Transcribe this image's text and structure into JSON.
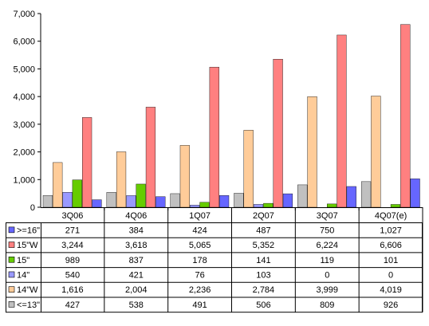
{
  "chart_data": {
    "type": "bar",
    "title": "",
    "xlabel": "",
    "ylabel": "",
    "ylim": [
      0,
      7000
    ],
    "yticks": [
      "0",
      "1,000",
      "2,000",
      "3,000",
      "4,000",
      "5,000",
      "6,000",
      "7,000"
    ],
    "grid": false,
    "legend": "data-table",
    "categories": [
      "3Q06",
      "4Q06",
      "1Q07",
      "2Q07",
      "3Q07",
      "4Q07(e)"
    ],
    "series": [
      {
        "name": "<=13\"",
        "color": "#C0C0C0",
        "values": [
          427,
          538,
          491,
          506,
          809,
          926
        ],
        "labels": [
          "427",
          "538",
          "491",
          "506",
          "809",
          "926"
        ]
      },
      {
        "name": "14\"W",
        "color": "#FFCC99",
        "values": [
          1616,
          2004,
          2236,
          2784,
          3999,
          4019
        ],
        "labels": [
          "1,616",
          "2,004",
          "2,236",
          "2,784",
          "3,999",
          "4,019"
        ]
      },
      {
        "name": "14\"",
        "color": "#9999FF",
        "values": [
          540,
          421,
          76,
          103,
          0,
          0
        ],
        "labels": [
          "540",
          "421",
          "76",
          "103",
          "0",
          "0"
        ]
      },
      {
        "name": "15\"",
        "color": "#66CC00",
        "values": [
          989,
          837,
          178,
          141,
          119,
          101
        ],
        "labels": [
          "989",
          "837",
          "178",
          "141",
          "119",
          "101"
        ]
      },
      {
        "name": "15\"W",
        "color": "#FF8080",
        "values": [
          3244,
          3618,
          5065,
          5352,
          6224,
          6606
        ],
        "labels": [
          "3,244",
          "3,618",
          "5,065",
          "5,352",
          "6,224",
          "6,606"
        ]
      },
      {
        "name": ">=16\"",
        "color": "#6666FF",
        "values": [
          271,
          384,
          424,
          487,
          750,
          1027
        ],
        "labels": [
          "271",
          "384",
          "424",
          "487",
          "750",
          "1,027"
        ]
      }
    ],
    "table_row_order": [
      ">=16\"",
      "15\"W",
      "15\"",
      "14\"",
      "14\"W",
      "<=13\""
    ]
  }
}
